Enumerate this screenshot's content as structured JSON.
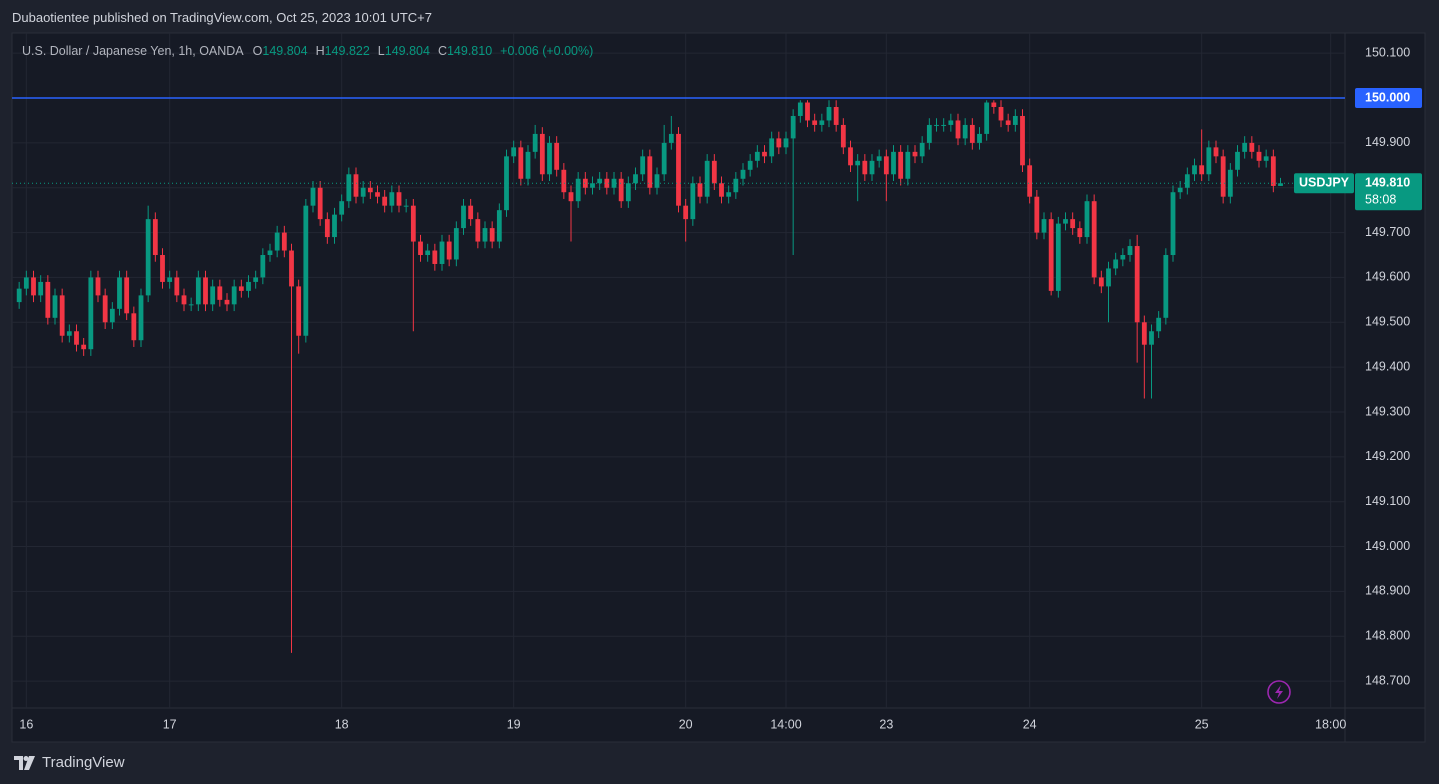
{
  "attribution": "Dubaotientee published on TradingView.com, Oct 25, 2023 10:01 UTC+7",
  "footer": "TradingView",
  "chart_data": {
    "type": "candlestick",
    "title": "U.S. Dollar / Japanese Yen, 1h, OANDA",
    "ohlc_header": [
      {
        "label": "O",
        "value": "149.804"
      },
      {
        "label": "H",
        "value": "149.822"
      },
      {
        "label": "L",
        "value": "149.804"
      },
      {
        "label": "C",
        "value": "149.810"
      }
    ],
    "change": "+0.006 (+0.00%)",
    "x": [
      0,
      1,
      2,
      3,
      4,
      5,
      6,
      7,
      8,
      9,
      10,
      11,
      12,
      13,
      14,
      15,
      16,
      17,
      18,
      19,
      20,
      21,
      22,
      23,
      24,
      25,
      26,
      27,
      28,
      29,
      30,
      31,
      32,
      33,
      34,
      35,
      36,
      37,
      38,
      39,
      40,
      41,
      42,
      43,
      44,
      45,
      46,
      47,
      48,
      49,
      50,
      51,
      52,
      53,
      54,
      55,
      56,
      57,
      58,
      59,
      60,
      61,
      62,
      63,
      64,
      65,
      66,
      67,
      68,
      69,
      70,
      71,
      72,
      73,
      74,
      75,
      76,
      77,
      78,
      79,
      80,
      81,
      82,
      83,
      84,
      85,
      86,
      87,
      88,
      89,
      90,
      91,
      92,
      93,
      94,
      95,
      96,
      97,
      98,
      99,
      100,
      101,
      102,
      103,
      104,
      105,
      106,
      107,
      108,
      109,
      110,
      111,
      112,
      113,
      114,
      115,
      116,
      117,
      118,
      119,
      120,
      121,
      122,
      123,
      124,
      125,
      126,
      127,
      128,
      129,
      130,
      131,
      132,
      133,
      134,
      135,
      136,
      137,
      138,
      139,
      140,
      141,
      142,
      143,
      144,
      145,
      146,
      147,
      148,
      149,
      150,
      151,
      152,
      153,
      154,
      155,
      156,
      157,
      158,
      159,
      160,
      161,
      162,
      163,
      164,
      165,
      166,
      167,
      168,
      169,
      170,
      171,
      172,
      173,
      174,
      175,
      176
    ],
    "series": [
      {
        "name": "USDJPY",
        "open": [
          149.545,
          149.575,
          149.6,
          149.56,
          149.59,
          149.51,
          149.56,
          149.47,
          149.48,
          149.45,
          149.44,
          149.6,
          149.56,
          149.5,
          149.53,
          149.6,
          149.52,
          149.46,
          149.56,
          149.73,
          149.65,
          149.59,
          149.6,
          149.56,
          149.54,
          149.54,
          149.6,
          149.54,
          149.58,
          149.55,
          149.54,
          149.58,
          149.57,
          149.59,
          149.6,
          149.65,
          149.66,
          149.7,
          149.66,
          149.58,
          149.47,
          149.76,
          149.8,
          149.73,
          149.69,
          149.74,
          149.77,
          149.83,
          149.78,
          149.8,
          149.79,
          149.78,
          149.76,
          149.79,
          149.76,
          149.76,
          149.68,
          149.65,
          149.66,
          149.63,
          149.68,
          149.64,
          149.71,
          149.76,
          149.73,
          149.68,
          149.71,
          149.68,
          149.75,
          149.87,
          149.89,
          149.82,
          149.88,
          149.92,
          149.83,
          149.9,
          149.84,
          149.79,
          149.77,
          149.82,
          149.8,
          149.81,
          149.82,
          149.8,
          149.82,
          149.77,
          149.81,
          149.83,
          149.87,
          149.8,
          149.83,
          149.9,
          149.92,
          149.76,
          149.73,
          149.81,
          149.78,
          149.86,
          149.81,
          149.78,
          149.79,
          149.82,
          149.84,
          149.86,
          149.88,
          149.87,
          149.91,
          149.89,
          149.91,
          149.96,
          149.99,
          149.95,
          149.94,
          149.95,
          149.98,
          149.94,
          149.89,
          149.85,
          149.86,
          149.83,
          149.86,
          149.87,
          149.83,
          149.88,
          149.82,
          149.88,
          149.87,
          149.9,
          149.94,
          149.94,
          149.94,
          149.95,
          149.91,
          149.94,
          149.9,
          149.92,
          149.99,
          149.98,
          149.95,
          149.94,
          149.96,
          149.85,
          149.78,
          149.7,
          149.73,
          149.57,
          149.72,
          149.73,
          149.71,
          149.69,
          149.77,
          149.6,
          149.58,
          149.62,
          149.64,
          149.65,
          149.67,
          149.5,
          149.45,
          149.48,
          149.51,
          149.65,
          149.79,
          149.8,
          149.83,
          149.85,
          149.83,
          149.89,
          149.87,
          149.78,
          149.84,
          149.88,
          149.9,
          149.88,
          149.86,
          149.87,
          149.804
        ],
        "high": [
          149.59,
          149.615,
          149.615,
          149.605,
          149.605,
          149.575,
          149.575,
          149.495,
          149.495,
          149.465,
          149.615,
          149.615,
          149.575,
          149.545,
          149.615,
          149.615,
          149.535,
          149.575,
          149.76,
          149.745,
          149.665,
          149.615,
          149.615,
          149.575,
          149.555,
          149.615,
          149.615,
          149.595,
          149.595,
          149.565,
          149.595,
          149.595,
          149.605,
          149.615,
          149.665,
          149.675,
          149.715,
          149.715,
          149.675,
          149.595,
          149.775,
          149.815,
          149.815,
          149.745,
          149.755,
          149.785,
          149.845,
          149.845,
          149.815,
          149.815,
          149.805,
          149.795,
          149.805,
          149.805,
          149.775,
          149.775,
          149.695,
          149.675,
          149.675,
          149.695,
          149.695,
          149.725,
          149.775,
          149.775,
          149.745,
          149.725,
          149.725,
          149.765,
          149.885,
          149.905,
          149.905,
          149.895,
          149.94,
          149.935,
          149.915,
          149.915,
          149.855,
          149.805,
          149.835,
          149.835,
          149.825,
          149.835,
          149.835,
          149.835,
          149.835,
          149.825,
          149.845,
          149.885,
          149.885,
          149.845,
          149.94,
          149.96,
          149.935,
          149.775,
          149.825,
          149.825,
          149.875,
          149.875,
          149.825,
          149.805,
          149.835,
          149.855,
          149.875,
          149.895,
          149.895,
          149.925,
          149.925,
          149.925,
          149.975,
          149.995,
          149.995,
          149.965,
          149.965,
          149.995,
          149.995,
          149.955,
          149.905,
          149.875,
          149.875,
          149.875,
          149.885,
          149.885,
          149.895,
          149.895,
          149.895,
          149.895,
          149.915,
          149.955,
          149.955,
          149.955,
          149.965,
          149.965,
          149.955,
          149.955,
          149.935,
          149.995,
          149.995,
          149.995,
          149.965,
          149.975,
          149.975,
          149.865,
          149.795,
          149.745,
          149.745,
          149.735,
          149.745,
          149.745,
          149.725,
          149.785,
          149.785,
          149.615,
          149.635,
          149.655,
          149.665,
          149.685,
          149.695,
          149.515,
          149.495,
          149.525,
          149.665,
          149.805,
          149.815,
          149.845,
          149.865,
          149.93,
          149.905,
          149.905,
          149.885,
          149.855,
          149.895,
          149.915,
          149.915,
          149.895,
          149.885,
          149.885,
          149.822
        ],
        "low": [
          149.53,
          149.56,
          149.545,
          149.545,
          149.495,
          149.495,
          149.455,
          149.455,
          149.435,
          149.425,
          149.425,
          149.545,
          149.485,
          149.485,
          149.515,
          149.505,
          149.445,
          149.445,
          149.545,
          149.635,
          149.575,
          149.575,
          149.545,
          149.525,
          149.525,
          149.525,
          149.525,
          149.525,
          149.535,
          149.525,
          149.525,
          149.555,
          149.555,
          149.575,
          149.585,
          149.635,
          149.645,
          149.645,
          148.763,
          149.43,
          149.455,
          149.745,
          149.715,
          149.675,
          149.675,
          149.725,
          149.755,
          149.765,
          149.765,
          149.775,
          149.765,
          149.745,
          149.745,
          149.745,
          149.745,
          149.48,
          149.635,
          149.635,
          149.615,
          149.615,
          149.625,
          149.625,
          149.695,
          149.715,
          149.665,
          149.665,
          149.665,
          149.665,
          149.735,
          149.855,
          149.805,
          149.805,
          149.865,
          149.815,
          149.815,
          149.825,
          149.775,
          149.68,
          149.755,
          149.785,
          149.785,
          149.795,
          149.785,
          149.785,
          149.755,
          149.755,
          149.795,
          149.815,
          149.785,
          149.785,
          149.815,
          149.885,
          149.745,
          149.68,
          149.715,
          149.765,
          149.765,
          149.795,
          149.765,
          149.765,
          149.775,
          149.805,
          149.825,
          149.845,
          149.855,
          149.855,
          149.875,
          149.875,
          149.65,
          149.945,
          149.935,
          149.925,
          149.925,
          149.935,
          149.925,
          149.875,
          149.835,
          149.77,
          149.815,
          149.815,
          149.845,
          149.77,
          149.815,
          149.805,
          149.805,
          149.855,
          149.855,
          149.885,
          149.925,
          149.925,
          149.925,
          149.895,
          149.895,
          149.885,
          149.885,
          149.905,
          149.965,
          149.935,
          149.925,
          149.925,
          149.835,
          149.765,
          149.685,
          149.685,
          149.56,
          149.555,
          149.705,
          149.695,
          149.675,
          149.675,
          149.585,
          149.565,
          149.5,
          149.605,
          149.625,
          149.635,
          149.41,
          149.33,
          149.33,
          149.465,
          149.495,
          149.635,
          149.775,
          149.785,
          149.815,
          149.815,
          149.815,
          149.855,
          149.765,
          149.765,
          149.825,
          149.865,
          149.865,
          149.845,
          149.845,
          149.79,
          149.804
        ],
        "close": [
          149.575,
          149.6,
          149.56,
          149.59,
          149.51,
          149.56,
          149.47,
          149.48,
          149.45,
          149.44,
          149.6,
          149.56,
          149.5,
          149.53,
          149.6,
          149.52,
          149.46,
          149.56,
          149.73,
          149.65,
          149.59,
          149.6,
          149.56,
          149.54,
          149.54,
          149.6,
          149.54,
          149.58,
          149.55,
          149.54,
          149.58,
          149.57,
          149.59,
          149.6,
          149.65,
          149.66,
          149.7,
          149.66,
          149.58,
          149.47,
          149.76,
          149.8,
          149.73,
          149.69,
          149.74,
          149.77,
          149.83,
          149.78,
          149.8,
          149.79,
          149.78,
          149.76,
          149.79,
          149.76,
          149.76,
          149.68,
          149.65,
          149.66,
          149.63,
          149.68,
          149.64,
          149.71,
          149.76,
          149.73,
          149.68,
          149.71,
          149.68,
          149.75,
          149.87,
          149.89,
          149.82,
          149.88,
          149.92,
          149.83,
          149.9,
          149.84,
          149.79,
          149.77,
          149.82,
          149.8,
          149.81,
          149.82,
          149.8,
          149.82,
          149.77,
          149.81,
          149.83,
          149.87,
          149.8,
          149.83,
          149.9,
          149.92,
          149.76,
          149.73,
          149.81,
          149.78,
          149.86,
          149.81,
          149.78,
          149.79,
          149.82,
          149.84,
          149.86,
          149.88,
          149.87,
          149.91,
          149.89,
          149.91,
          149.96,
          149.99,
          149.95,
          149.94,
          149.95,
          149.98,
          149.94,
          149.89,
          149.85,
          149.86,
          149.83,
          149.86,
          149.87,
          149.83,
          149.88,
          149.82,
          149.88,
          149.87,
          149.9,
          149.94,
          149.94,
          149.94,
          149.95,
          149.91,
          149.94,
          149.9,
          149.92,
          149.99,
          149.98,
          149.95,
          149.94,
          149.96,
          149.85,
          149.78,
          149.7,
          149.73,
          149.57,
          149.72,
          149.73,
          149.71,
          149.69,
          149.77,
          149.6,
          149.58,
          149.62,
          149.64,
          149.65,
          149.67,
          149.5,
          149.45,
          149.48,
          149.51,
          149.65,
          149.79,
          149.8,
          149.83,
          149.85,
          149.83,
          149.89,
          149.87,
          149.78,
          149.84,
          149.88,
          149.9,
          149.88,
          149.86,
          149.87,
          149.804,
          149.81
        ]
      }
    ],
    "up_color": "#089981",
    "down_color": "#f23645",
    "xlim": [
      -1,
      185
    ],
    "xticks": [
      {
        "value": 1,
        "label": "16"
      },
      {
        "value": 21,
        "label": "17"
      },
      {
        "value": 45,
        "label": "18"
      },
      {
        "value": 69,
        "label": "19"
      },
      {
        "value": 93,
        "label": "20"
      },
      {
        "value": 107,
        "label": "14:00"
      },
      {
        "value": 121,
        "label": "23"
      },
      {
        "value": 141,
        "label": "24"
      },
      {
        "value": 165,
        "label": "25"
      },
      {
        "value": 183,
        "label": "18:00"
      }
    ],
    "ylim": [
      148.64,
      150.145
    ],
    "yticks": [
      {
        "value": 148.7,
        "label": "148.700"
      },
      {
        "value": 148.8,
        "label": "148.800"
      },
      {
        "value": 148.9,
        "label": "148.900"
      },
      {
        "value": 149,
        "label": "149.000"
      },
      {
        "value": 149.1,
        "label": "149.100"
      },
      {
        "value": 149.2,
        "label": "149.200"
      },
      {
        "value": 149.3,
        "label": "149.300"
      },
      {
        "value": 149.4,
        "label": "149.400"
      },
      {
        "value": 149.5,
        "label": "149.500"
      },
      {
        "value": 149.6,
        "label": "149.600"
      },
      {
        "value": 149.7,
        "label": "149.700"
      },
      {
        "value": 149.8,
        "label": "149.800"
      },
      {
        "value": 149.9,
        "label": "149.900"
      },
      {
        "value": 150,
        "label": "150.000"
      },
      {
        "value": 150.1,
        "label": "150.100"
      }
    ],
    "grid": true,
    "hline": {
      "value": 150,
      "label": "150.000",
      "color": "#2962ff"
    },
    "last_price_label": "149.810",
    "countdown": "58:08"
  }
}
